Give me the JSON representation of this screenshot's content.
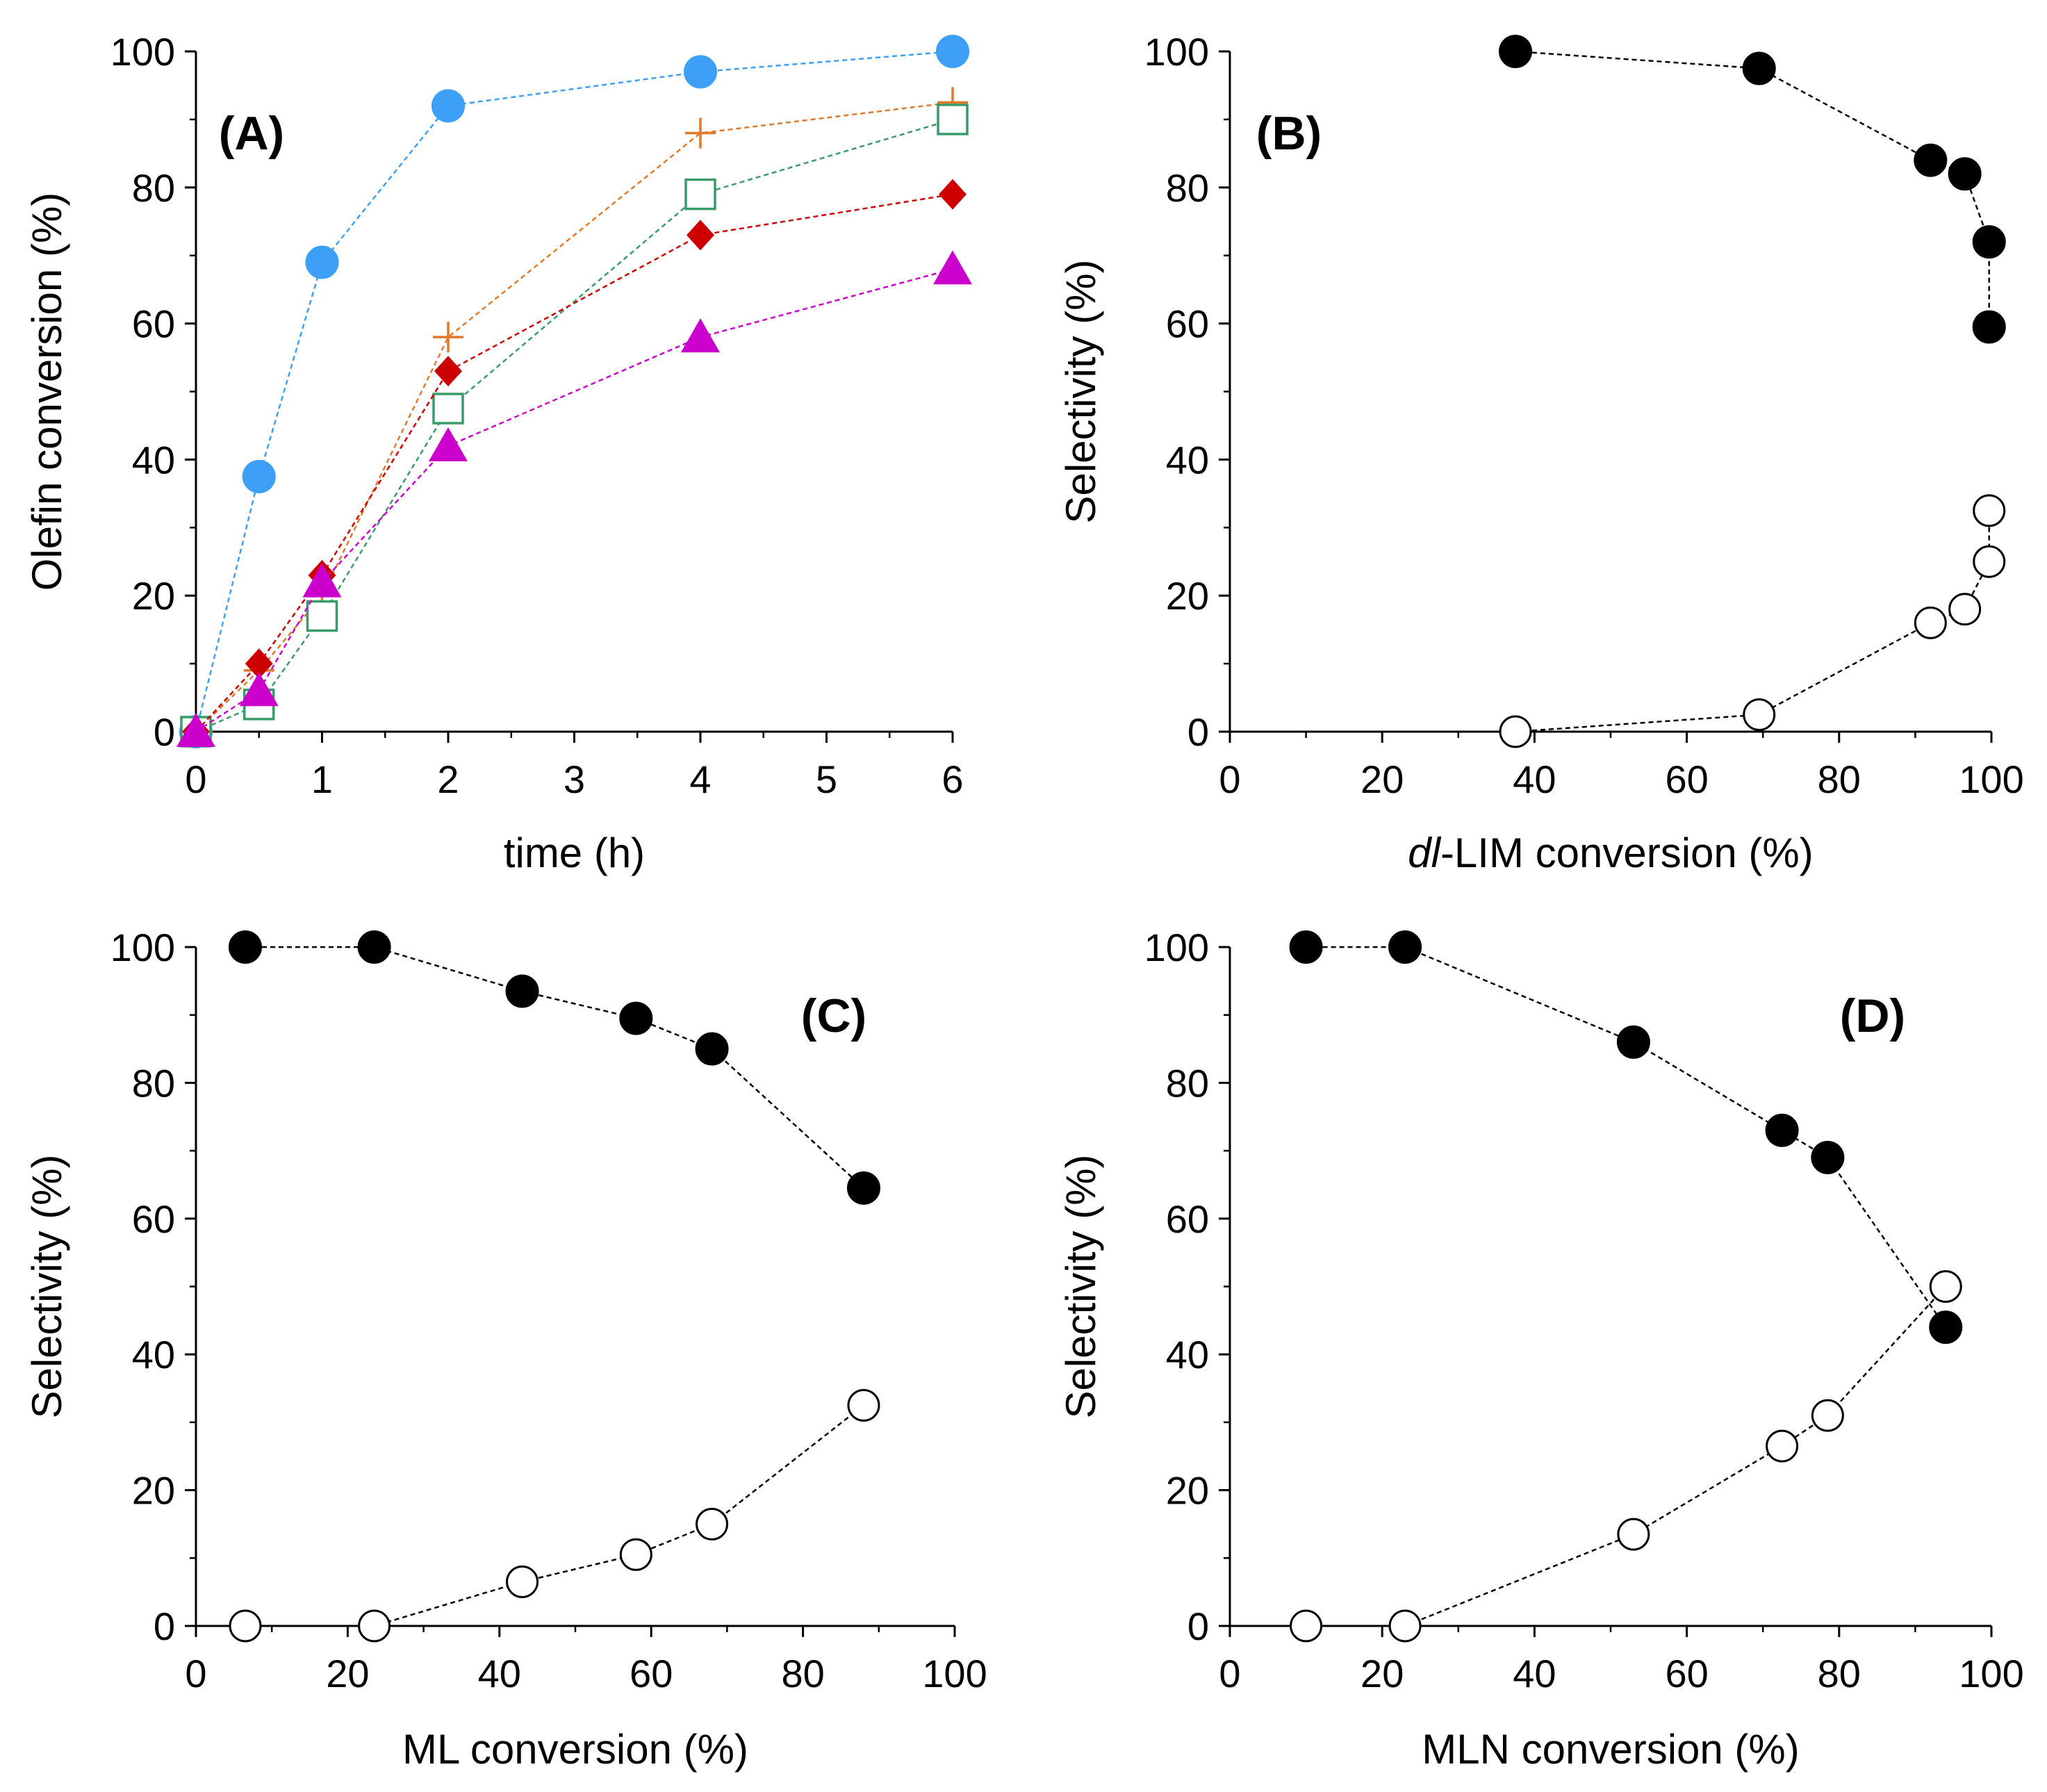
{
  "chart_data": [
    {
      "type": "line",
      "panel_label": "(A)",
      "xlabel": "time (h)",
      "ylabel": "Olefin conversion (%)",
      "xlim": [
        0,
        6
      ],
      "ylim": [
        0,
        100
      ],
      "xticks": [
        0,
        1,
        2,
        3,
        4,
        5,
        6
      ],
      "xtick_labels": [
        "0",
        "1",
        "2",
        "3",
        "4",
        "5",
        "6"
      ],
      "yticks": [
        0,
        20,
        40,
        60,
        80,
        100
      ],
      "ytick_labels": [
        "0",
        "20",
        "40",
        "60",
        "80",
        "100"
      ],
      "series": [
        {
          "marker": "filled-circle",
          "color": "#3d9ff5",
          "x": [
            0,
            0.5,
            1,
            2,
            4,
            6
          ],
          "y": [
            0,
            37.5,
            69,
            92,
            97,
            100
          ]
        },
        {
          "marker": "plus",
          "color": "#e07a2a",
          "x": [
            0,
            0.5,
            1,
            2,
            4,
            6
          ],
          "y": [
            0,
            9,
            20,
            58,
            88,
            92.5
          ]
        },
        {
          "marker": "open-square",
          "color": "#3a9b6a",
          "x": [
            0,
            0.5,
            1,
            2,
            4,
            6
          ],
          "y": [
            0,
            4,
            17,
            47.5,
            79,
            90
          ]
        },
        {
          "marker": "filled-diamond",
          "color": "#cc0000",
          "x": [
            0,
            0.5,
            1,
            2,
            4,
            6
          ],
          "y": [
            0,
            10,
            23,
            53,
            73,
            79
          ]
        },
        {
          "marker": "filled-triangle",
          "color": "#cc00cc",
          "x": [
            0,
            0.5,
            1,
            2,
            4,
            6
          ],
          "y": [
            0,
            6,
            22,
            42,
            58,
            68
          ]
        }
      ]
    },
    {
      "type": "line",
      "panel_label": "(B)",
      "xlabel_italic_prefix": "dl",
      "xlabel": "-LIM conversion (%)",
      "ylabel": "Selectivity (%)",
      "xlim": [
        0,
        100
      ],
      "ylim": [
        0,
        100
      ],
      "xticks": [
        0,
        20,
        40,
        60,
        80,
        100
      ],
      "xtick_labels": [
        "0",
        "20",
        "40",
        "60",
        "80",
        "100"
      ],
      "yticks": [
        0,
        20,
        40,
        60,
        80,
        100
      ],
      "ytick_labels": [
        "0",
        "20",
        "40",
        "60",
        "80",
        "100"
      ],
      "series": [
        {
          "marker": "filled-circle",
          "color": "#000000",
          "x": [
            37.5,
            69.5,
            92,
            96.5,
            99.7,
            99.7
          ],
          "y": [
            100,
            97.5,
            84,
            82,
            72,
            59.5
          ]
        },
        {
          "marker": "open-circle",
          "color": "#000000",
          "x": [
            37.5,
            69.5,
            92,
            96.5,
            99.7,
            99.7
          ],
          "y": [
            0,
            2.5,
            16,
            18,
            25,
            32.5
          ]
        }
      ]
    },
    {
      "type": "line",
      "panel_label": "(C)",
      "xlabel": "ML conversion (%)",
      "ylabel": "Selectivity (%)",
      "xlim": [
        0,
        100
      ],
      "ylim": [
        0,
        100
      ],
      "xticks": [
        0,
        20,
        40,
        60,
        80,
        100
      ],
      "xtick_labels": [
        "0",
        "20",
        "40",
        "60",
        "80",
        "100"
      ],
      "yticks": [
        0,
        20,
        40,
        60,
        80,
        100
      ],
      "ytick_labels": [
        "0",
        "20",
        "40",
        "60",
        "80",
        "100"
      ],
      "series": [
        {
          "marker": "filled-circle",
          "color": "#000000",
          "x": [
            6.5,
            23.5,
            43,
            58,
            68,
            88
          ],
          "y": [
            100,
            100,
            93.5,
            89.5,
            85,
            64.5
          ]
        },
        {
          "marker": "open-circle",
          "color": "#000000",
          "x": [
            6.5,
            23.5,
            43,
            58,
            68,
            88
          ],
          "y": [
            0,
            0,
            6.5,
            10.5,
            15,
            32.5
          ]
        }
      ]
    },
    {
      "type": "line",
      "panel_label": "(D)",
      "xlabel": "MLN conversion (%)",
      "ylabel": "Selectivity (%)",
      "xlim": [
        0,
        100
      ],
      "ylim": [
        0,
        100
      ],
      "xticks": [
        0,
        20,
        40,
        60,
        80,
        100
      ],
      "xtick_labels": [
        "0",
        "20",
        "40",
        "60",
        "80",
        "100"
      ],
      "yticks": [
        0,
        20,
        40,
        60,
        80,
        100
      ],
      "ytick_labels": [
        "0",
        "20",
        "40",
        "60",
        "80",
        "100"
      ],
      "series": [
        {
          "marker": "filled-circle",
          "color": "#000000",
          "x": [
            10,
            23,
            53,
            72.5,
            78.5,
            94
          ],
          "y": [
            100,
            100,
            86,
            73,
            69,
            44
          ]
        },
        {
          "marker": "open-circle",
          "color": "#000000",
          "x": [
            10,
            23,
            53,
            72.5,
            78.5,
            94
          ],
          "y": [
            0,
            0,
            13.5,
            26.5,
            31,
            50
          ]
        }
      ]
    }
  ]
}
